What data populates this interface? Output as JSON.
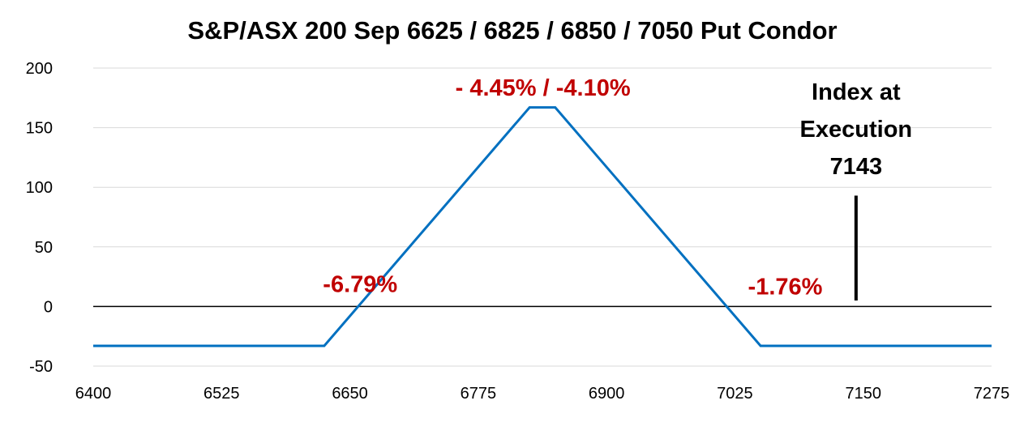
{
  "colors": {
    "series": "#0070C0",
    "annotation_red": "#C00000",
    "grid": "#D9D9D9",
    "axis": "#000000"
  },
  "chart_data": {
    "type": "line",
    "title": "S&P/ASX 200 Sep 6625 / 6825 / 6850 / 7050 Put Condor",
    "xlabel": "",
    "ylabel": "",
    "xlim": [
      6400,
      7275
    ],
    "ylim": [
      -50,
      200
    ],
    "x_ticks": [
      "6400",
      "6525",
      "6650",
      "6775",
      "6900",
      "7025",
      "7150",
      "7275"
    ],
    "y_ticks": [
      "200",
      "150",
      "100",
      "50",
      "0",
      "-50"
    ],
    "grid": true,
    "series": [
      {
        "x": [
          6400,
          6625,
          6825,
          6850,
          7050,
          7275
        ],
        "y": [
          -33,
          -33,
          167,
          167,
          -33,
          -33
        ]
      }
    ],
    "annotations": {
      "lower_breakeven": {
        "text": "-6.79%",
        "x": 6660,
        "y": 12
      },
      "max_profit": {
        "text": "- 4.45% / -4.10%",
        "x": 6838,
        "y": 177
      },
      "upper_breakeven": {
        "text": "-1.76%",
        "x": 7074,
        "y": 10
      },
      "index_label": [
        "Index at",
        "Execution",
        "7143"
      ],
      "index_marker": {
        "x": 7143,
        "y_from": 5,
        "y_to": 93
      }
    }
  }
}
